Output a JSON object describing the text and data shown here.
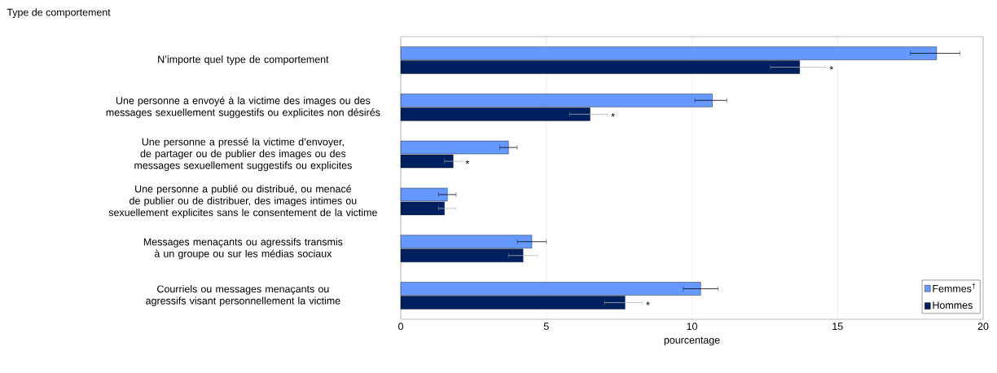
{
  "chart_data": {
    "type": "bar",
    "orientation": "horizontal",
    "annotations": [
      "Type de comportement"
    ],
    "xlabel": "pourcentage",
    "categories": [
      "N’importe quel type de comportement",
      "Une personne a envoyé à la victime des images ou des messages sexuellement suggestifs ou explicites non désirés",
      "Une personne a pressé la victime d’envoyer, de partager ou de publier des images ou des messages sexuellement suggestifs ou explicites",
      "Une personne a publié ou distribué, ou menacé de publier ou de distribuer, des images intimes ou sexuellement explicites sans le consentement de la victime",
      "Messages menaçants ou agressifs transmis à un groupe ou sur les médias sociaux",
      "Courriels ou messages menaçants ou agressifs visant personnellement la victime"
    ],
    "series": [
      {
        "name": "Femmes$^{†}$",
        "color": "#6699ff",
        "values": [
          18.4,
          10.7,
          3.7,
          1.6,
          4.5,
          10.3
        ],
        "errors": [
          [
            17.5,
            19.2
          ],
          [
            10.1,
            11.2
          ],
          [
            3.4,
            4.0
          ],
          [
            1.3,
            1.9
          ],
          [
            4.0,
            5.0
          ],
          [
            9.7,
            10.9
          ]
        ]
      },
      {
        "name": "Hommes",
        "color": "#002060",
        "values": [
          13.7,
          6.5,
          1.8,
          1.5,
          4.2,
          7.7
        ],
        "errors": [
          [
            12.7,
            14.6
          ],
          [
            5.8,
            7.1
          ],
          [
            1.5,
            2.1
          ],
          [
            1.3,
            1.9
          ],
          [
            3.7,
            4.7
          ],
          [
            7.0,
            8.3
          ]
        ],
        "value_labels": [
          "*",
          "*",
          "*",
          null,
          null,
          "*"
        ]
      }
    ],
    "xlim": [
      0,
      20
    ],
    "xticks": [
      0,
      5,
      10,
      15,
      20
    ],
    "grid": "x",
    "legend": "bottom right"
  }
}
